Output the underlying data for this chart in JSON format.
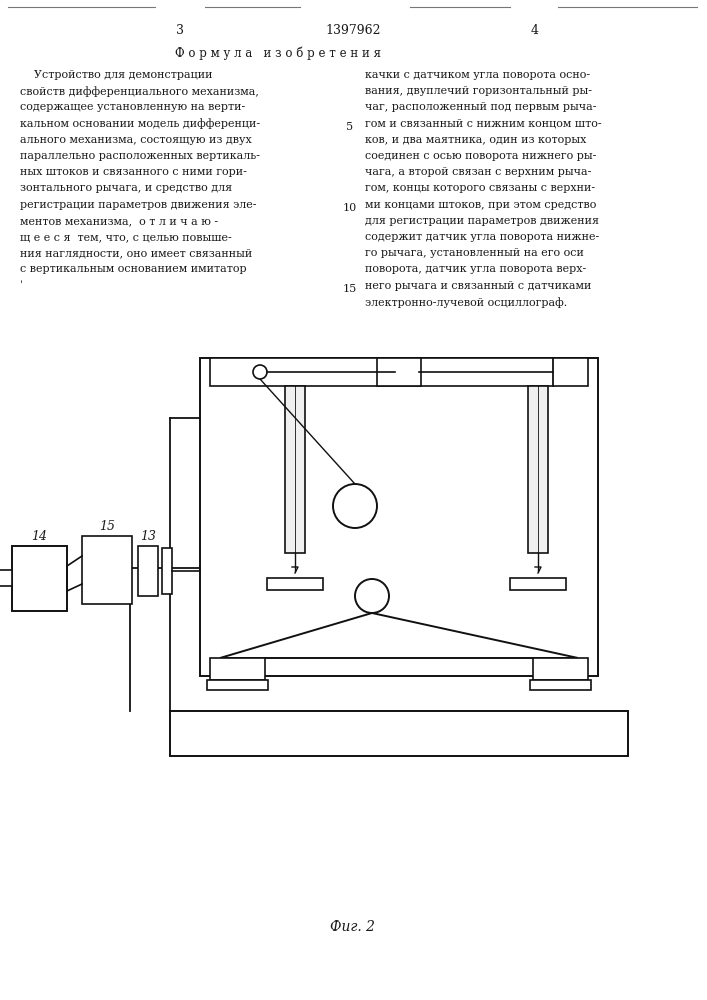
{
  "page_number_left": "3",
  "page_number_center": "1397962",
  "page_number_right": "4",
  "section_title": "Ф о р м у л а   и з о б р е т е н и я",
  "left_col": [
    "    Устройство для демонстрации",
    "свойств дифференциального механизма,",
    "содержащее установленную на верти-",
    "кальном основании модель дифференци-",
    "ального механизма, состоящую из двух",
    "параллельно расположенных вертикаль-",
    "ных штоков и связанного с ними гори-",
    "зонтального рычага, и средство для",
    "регистрации параметров движения эле-",
    "ментов механизма,  о т л и ч а ю -",
    "щ е е с я  тем, что, с целью повыше-",
    "ния наглядности, оно имеет связанный",
    "с вертикальным основанием имитатор",
    "ˈ"
  ],
  "right_col": [
    "качки с датчиком угла поворота осно-",
    "вания, двуплечий горизонтальный ры-",
    "чаг, расположенный под первым рыча-",
    "гом и связанный с нижним концом што-",
    "ков, и два маятника, один из которых",
    "соединен с осью поворота нижнего ры-",
    "чага, а второй связан с верхним рыча-",
    "гом, концы которого связаны с верхни-",
    "ми концами штоков, при этом средство",
    "для регистрации параметров движения",
    "содержит датчик угла поворота нижне-",
    "го рычага, установленный на его оси",
    "поворота, датчик угла поворота верх-",
    "него рычага и связанный с датчиками",
    "электронно-лучевой осциллограф."
  ],
  "line_nums": [
    "5",
    "10",
    "15"
  ],
  "line_num_rows": [
    3,
    8,
    13
  ],
  "caption": "Фиг. 2",
  "bg": "#ffffff",
  "tc": "#1a1a1a"
}
